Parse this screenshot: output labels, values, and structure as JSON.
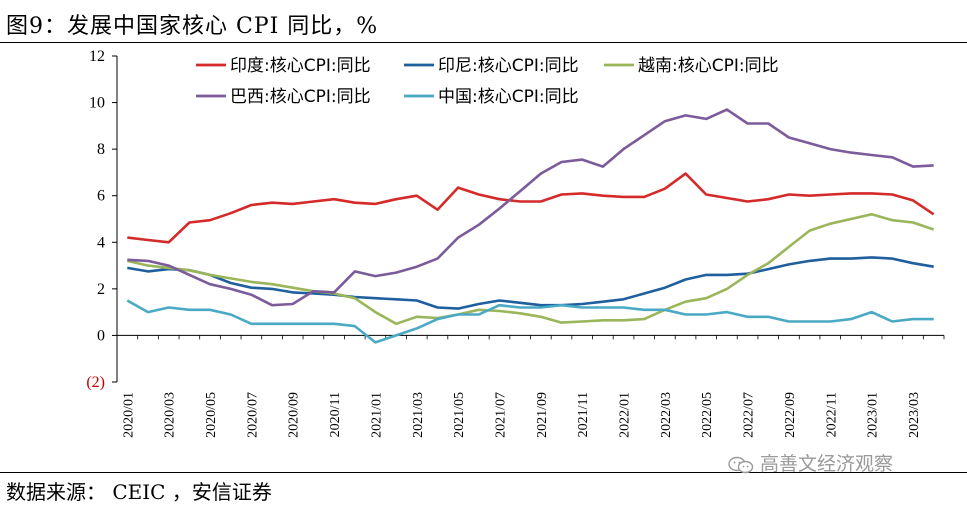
{
  "header": {
    "title": "图9：发展中国家核心 CPI 同比，%"
  },
  "footer": {
    "source": "数据来源： CEIC ，安信证券",
    "watermark": "高善文经济观察"
  },
  "icons": {
    "watermark_icon": "wechat-logo-icon"
  },
  "chart_data": {
    "type": "line",
    "title": "",
    "xlabel": "",
    "ylabel": "",
    "ylim": [
      -2,
      12
    ],
    "yticks": [
      "12",
      "10",
      "8",
      "6",
      "4",
      "2",
      "0",
      "(2)"
    ],
    "yticks_values": [
      12,
      10,
      8,
      6,
      4,
      2,
      0,
      -2
    ],
    "x_tick_labels": [
      "2020/01",
      "2020/03",
      "2020/05",
      "2020/07",
      "2020/09",
      "2020/11",
      "2021/01",
      "2021/03",
      "2021/05",
      "2021/07",
      "2021/09",
      "2021/11",
      "2022/01",
      "2022/03",
      "2022/05",
      "2022/07",
      "2022/09",
      "2022/11",
      "2023/01",
      "2023/03"
    ],
    "legend_position": "top",
    "x": [
      "2020/01",
      "2020/02",
      "2020/03",
      "2020/04",
      "2020/05",
      "2020/06",
      "2020/07",
      "2020/08",
      "2020/09",
      "2020/10",
      "2020/11",
      "2020/12",
      "2021/01",
      "2021/02",
      "2021/03",
      "2021/04",
      "2021/05",
      "2021/06",
      "2021/07",
      "2021/08",
      "2021/09",
      "2021/10",
      "2021/11",
      "2021/12",
      "2022/01",
      "2022/02",
      "2022/03",
      "2022/04",
      "2022/05",
      "2022/06",
      "2022/07",
      "2022/08",
      "2022/09",
      "2022/10",
      "2022/11",
      "2022/12",
      "2023/01",
      "2023/02",
      "2023/03",
      "2023/04"
    ],
    "series": [
      {
        "name": "印度:核心CPI:同比",
        "color": "#d42a2a",
        "values": [
          4.2,
          4.1,
          4.0,
          4.85,
          4.95,
          5.25,
          5.6,
          5.7,
          5.65,
          5.75,
          5.85,
          5.7,
          5.65,
          5.85,
          6.0,
          5.4,
          6.35,
          6.05,
          5.85,
          5.75,
          5.75,
          6.05,
          6.1,
          6.0,
          5.95,
          5.95,
          6.3,
          6.95,
          6.05,
          5.9,
          5.75,
          5.85,
          6.05,
          6.0,
          6.05,
          6.1,
          6.1,
          6.05,
          5.8,
          5.2
        ]
      },
      {
        "name": "印尼:核心CPI:同比",
        "color": "#1f5f9e",
        "values": [
          2.9,
          2.75,
          2.85,
          2.8,
          2.6,
          2.25,
          2.05,
          2.0,
          1.85,
          1.8,
          1.75,
          1.65,
          1.6,
          1.55,
          1.5,
          1.2,
          1.15,
          1.35,
          1.5,
          1.4,
          1.3,
          1.3,
          1.35,
          1.45,
          1.55,
          1.8,
          2.05,
          2.4,
          2.6,
          2.6,
          2.65,
          2.85,
          3.05,
          3.2,
          3.3,
          3.3,
          3.35,
          3.3,
          3.1,
          2.95
        ]
      },
      {
        "name": "越南:核心CPI:同比",
        "color": "#9bb55a",
        "values": [
          3.2,
          3.0,
          2.9,
          2.8,
          2.6,
          2.45,
          2.3,
          2.2,
          2.05,
          1.9,
          1.8,
          1.6,
          1.0,
          0.5,
          0.8,
          0.75,
          0.9,
          1.1,
          1.05,
          0.95,
          0.8,
          0.55,
          0.6,
          0.65,
          0.65,
          0.7,
          1.1,
          1.45,
          1.6,
          2.0,
          2.6,
          3.1,
          3.8,
          4.5,
          4.8,
          5.0,
          5.2,
          4.95,
          4.85,
          4.55
        ]
      },
      {
        "name": "巴西:核心CPI:同比",
        "color": "#7b5b9a",
        "values": [
          3.25,
          3.2,
          3.0,
          2.6,
          2.2,
          2.0,
          1.75,
          1.3,
          1.35,
          1.9,
          1.85,
          2.75,
          2.55,
          2.7,
          2.95,
          3.3,
          4.2,
          4.75,
          5.45,
          6.2,
          6.95,
          7.45,
          7.55,
          7.25,
          8.0,
          8.6,
          9.2,
          9.45,
          9.3,
          9.7,
          9.1,
          9.1,
          8.5,
          8.25,
          8.0,
          7.85,
          7.75,
          7.65,
          7.25,
          7.3
        ]
      },
      {
        "name": "中国:核心CPI:同比",
        "color": "#4aa9c4",
        "values": [
          1.5,
          1.0,
          1.2,
          1.1,
          1.1,
          0.9,
          0.5,
          0.5,
          0.5,
          0.5,
          0.5,
          0.4,
          -0.3,
          0.0,
          0.3,
          0.7,
          0.9,
          0.9,
          1.3,
          1.2,
          1.2,
          1.3,
          1.2,
          1.2,
          1.2,
          1.1,
          1.1,
          0.9,
          0.9,
          1.0,
          0.8,
          0.8,
          0.6,
          0.6,
          0.6,
          0.7,
          1.0,
          0.6,
          0.7,
          0.7
        ]
      }
    ]
  }
}
